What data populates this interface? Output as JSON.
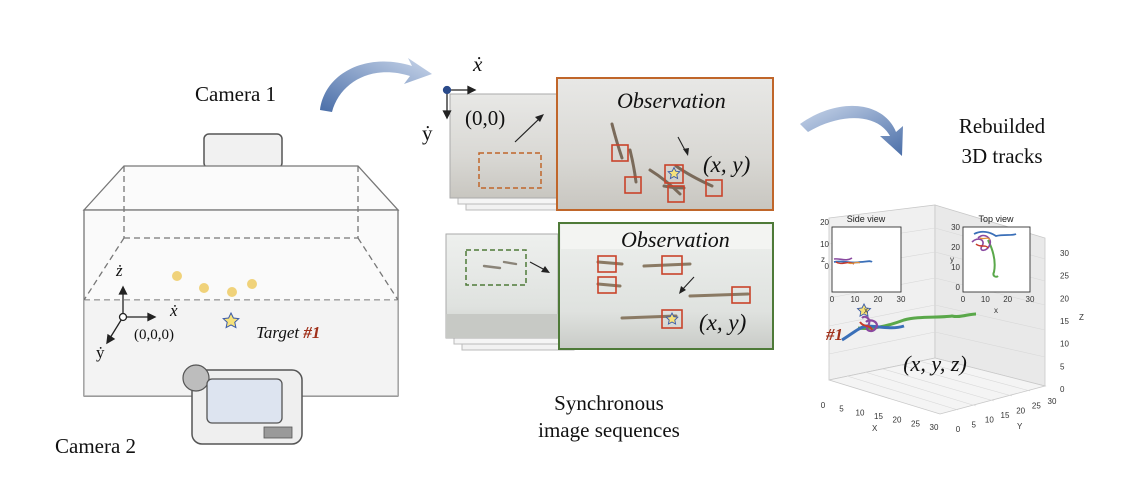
{
  "camera1_label": "Camera 1",
  "camera2_label": "Camera 2",
  "tank": {
    "axis_z": "ż",
    "axis_x": "ẋ",
    "axis_y": "ẏ",
    "origin": "(0,0,0)",
    "target_text": "Target",
    "target_id": "#1"
  },
  "view1": {
    "axis_x": "ẋ",
    "axis_y": "ẏ",
    "origin": "(0,0)",
    "observation": "Observation",
    "coord": "(x, y)",
    "frame_color": "#c0662a"
  },
  "view2": {
    "observation": "Observation",
    "coord": "(x, y)",
    "frame_color": "#4e7a38"
  },
  "sync_label_line1": "Synchronous",
  "sync_label_line2": "image sequences",
  "rebuild_line1": "Rebuilded",
  "rebuild_line2": "3D tracks",
  "plot3d": {
    "coord": "(x, y, z)",
    "target_id": "#1",
    "x_ticks": [
      "0",
      "5",
      "10",
      "15",
      "20",
      "25",
      "30"
    ],
    "y_ticks": [
      "0",
      "5",
      "10",
      "15",
      "20",
      "25",
      "30"
    ],
    "z_ticks": [
      "0",
      "5",
      "10",
      "15",
      "20",
      "25",
      "30"
    ],
    "xlabel": "X",
    "ylabel": "Y",
    "zlabel": "Z"
  },
  "side_view": {
    "title": "Side view",
    "x_ticks": [
      "0",
      "10",
      "20",
      "30"
    ],
    "y_ticks": [
      "0",
      "10",
      "20"
    ],
    "ylabel": "z",
    "xlabel": "x"
  },
  "top_view": {
    "title": "Top view",
    "x_ticks": [
      "0",
      "10",
      "20",
      "30"
    ],
    "y_ticks": [
      "0",
      "10",
      "20",
      "30"
    ],
    "ylabel": "y",
    "xlabel": "x"
  },
  "colors": {
    "arrow": "#8fa9cf",
    "target_red": "#a0301a",
    "box_red": "#c9432a",
    "dot_yellow": "#f0d27a",
    "track_blue": "#3a6fb8",
    "track_green": "#5aa84a",
    "track_purple": "#8a4aa0",
    "track_red": "#c83a2a",
    "track_orange": "#e0903a"
  }
}
